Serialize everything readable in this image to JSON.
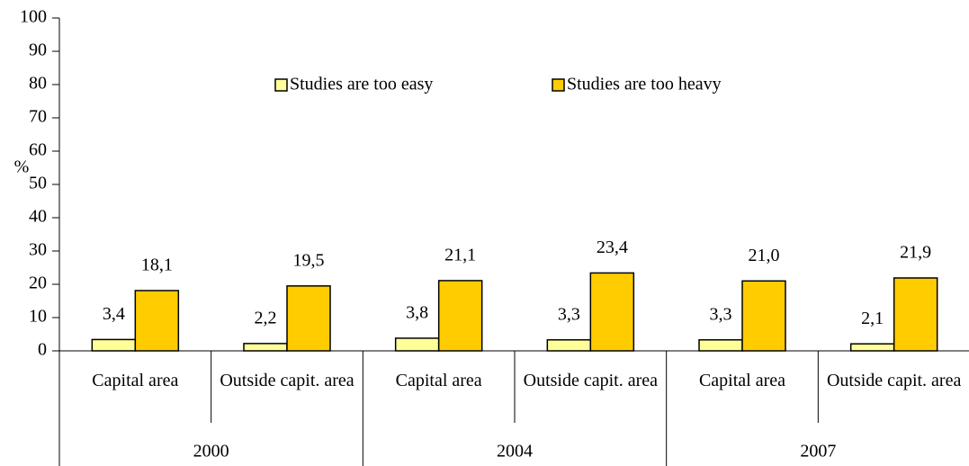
{
  "chart_data": {
    "type": "bar",
    "y_label": "%",
    "categories": [
      "Capital area",
      "Outside capit. area",
      "Capital area",
      "Outside capit. area",
      "Capital area",
      "Outside capit. area"
    ],
    "category_groups": [
      "2000",
      "2004",
      "2007"
    ],
    "series": [
      {
        "name": "Studies are too easy",
        "color": "#ffff99",
        "values": [
          3.4,
          2.2,
          3.8,
          3.3,
          3.3,
          2.1
        ],
        "value_labels": [
          "3,4",
          "2,2",
          "3,8",
          "3,3",
          "3,3",
          "2,1"
        ]
      },
      {
        "name": "Studies are too heavy",
        "color": "#ffcc00",
        "values": [
          18.1,
          19.5,
          21.1,
          23.4,
          21.0,
          21.9
        ],
        "value_labels": [
          "18,1",
          "19,5",
          "21,1",
          "23,4",
          "21,0",
          "21,9"
        ]
      }
    ],
    "ylim": [
      0,
      100
    ],
    "yticks": [
      0,
      10,
      20,
      30,
      40,
      50,
      60,
      70,
      80,
      90,
      100
    ]
  }
}
